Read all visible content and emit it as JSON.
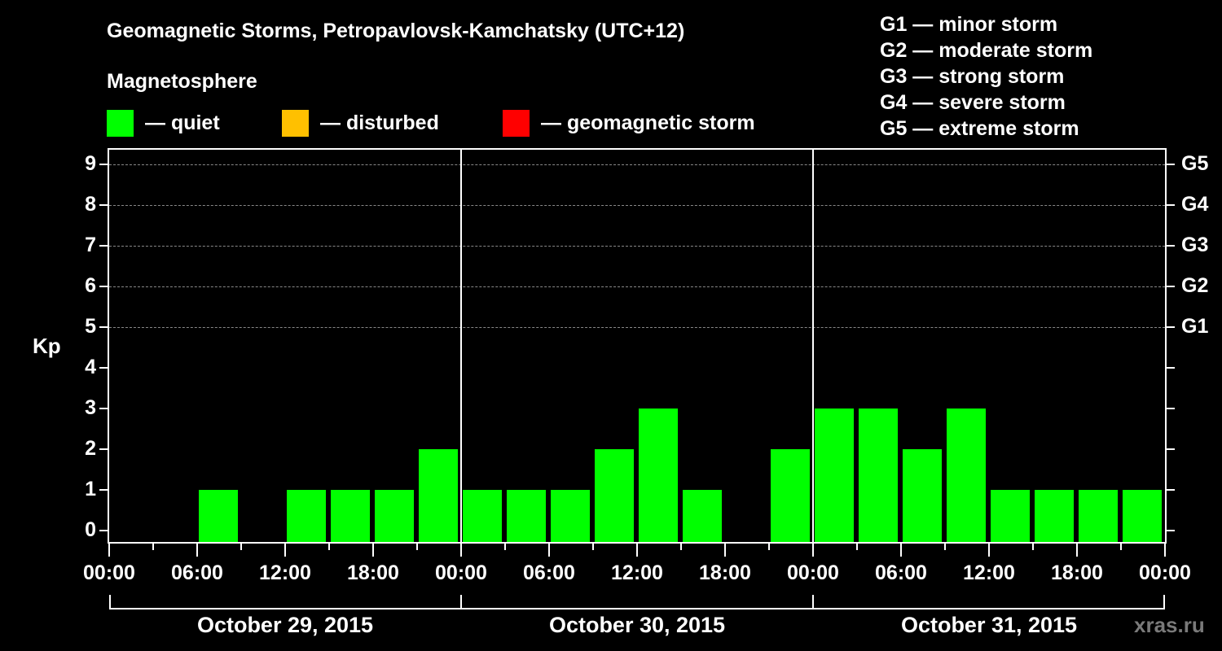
{
  "header": {
    "title": "Geomagnetic Storms, Petropavlovsk-Kamchatsky (UTC+12)",
    "subtitle": "Magnetosphere"
  },
  "legend": [
    {
      "label": "— quiet",
      "color": "#00ff00"
    },
    {
      "label": "— disturbed",
      "color": "#ffc000"
    },
    {
      "label": "— geomagnetic storm",
      "color": "#ff0000"
    }
  ],
  "g_scale": [
    "G1 — minor storm",
    "G2 — moderate storm",
    "G3 — strong storm",
    "G4 — severe storm",
    "G5 — extreme storm"
  ],
  "axis": {
    "ylabel": "Kp",
    "y_ticks": [
      "0",
      "1",
      "2",
      "3",
      "4",
      "5",
      "6",
      "7",
      "8",
      "9"
    ],
    "right_ticks": [
      {
        "kp": 5,
        "label": "G1"
      },
      {
        "kp": 6,
        "label": "G2"
      },
      {
        "kp": 7,
        "label": "G3"
      },
      {
        "kp": 8,
        "label": "G4"
      },
      {
        "kp": 9,
        "label": "G5"
      }
    ],
    "x_ticks": [
      "00:00",
      "06:00",
      "12:00",
      "18:00",
      "00:00",
      "06:00",
      "12:00",
      "18:00",
      "00:00",
      "06:00",
      "12:00",
      "18:00",
      "00:00"
    ],
    "dates": [
      "October 29, 2015",
      "October 30, 2015",
      "October 31, 2015"
    ]
  },
  "watermark": "xras.ru",
  "chart_data": {
    "type": "bar",
    "title": "Geomagnetic Storms, Petropavlovsk-Kamchatsky (UTC+12)",
    "xlabel": "",
    "ylabel": "Kp",
    "ylim": [
      0,
      9
    ],
    "grid": "dashed horizontal at Kp 5-9",
    "legend_position": "top",
    "categories": [
      "Oct 29 00-03",
      "Oct 29 03-06",
      "Oct 29 06-09",
      "Oct 29 09-12",
      "Oct 29 12-15",
      "Oct 29 15-18",
      "Oct 29 18-21",
      "Oct 29 21-24",
      "Oct 30 00-03",
      "Oct 30 03-06",
      "Oct 30 06-09",
      "Oct 30 09-12",
      "Oct 30 12-15",
      "Oct 30 15-18",
      "Oct 30 18-21",
      "Oct 30 21-24",
      "Oct 31 00-03",
      "Oct 31 03-06",
      "Oct 31 06-09",
      "Oct 31 09-12",
      "Oct 31 12-15",
      "Oct 31 15-18",
      "Oct 31 18-21",
      "Oct 31 21-24"
    ],
    "series": [
      {
        "name": "Kp index",
        "values": [
          0,
          0,
          1,
          0,
          1,
          1,
          1,
          2,
          1,
          1,
          1,
          2,
          3,
          1,
          0,
          2,
          3,
          3,
          2,
          3,
          1,
          1,
          1,
          1
        ],
        "color": "#00ff00"
      }
    ],
    "right_axis_labels": {
      "5": "G1",
      "6": "G2",
      "7": "G3",
      "8": "G4",
      "9": "G5"
    }
  }
}
